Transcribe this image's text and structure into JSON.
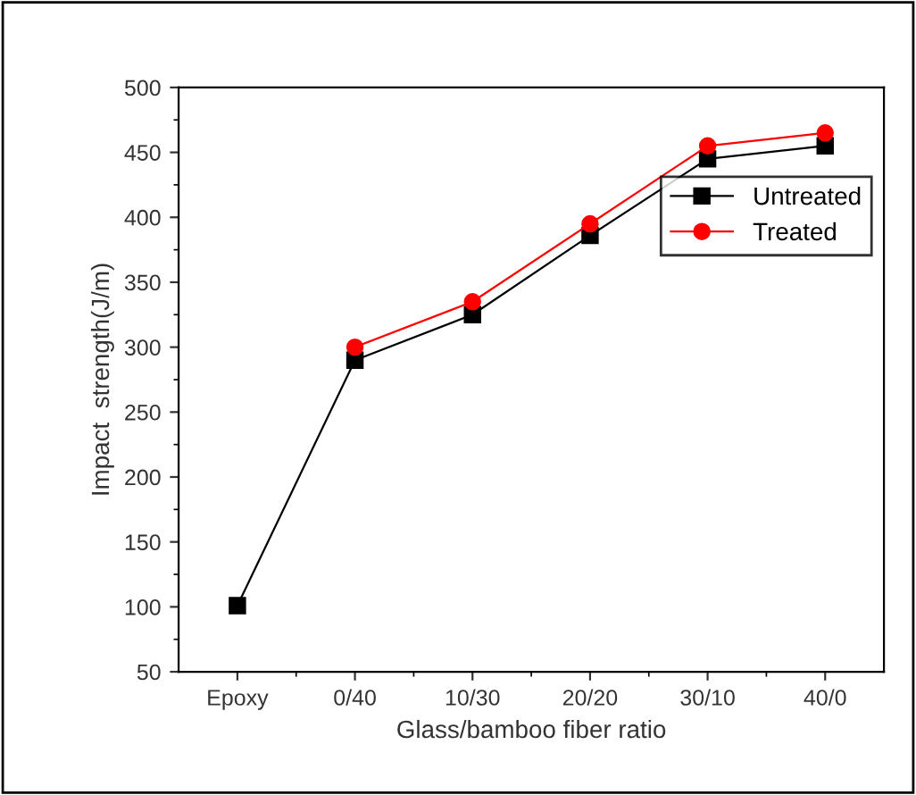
{
  "chart_data": {
    "type": "line",
    "xlabel": "Glass/bamboo fiber ratio",
    "ylabel": "Impact  strength(J/m)",
    "categories": [
      "Epoxy",
      "0/40",
      "10/30",
      "20/20",
      "30/10",
      "40/0"
    ],
    "series": [
      {
        "name": "Untreated",
        "color": "#000000",
        "marker": "square",
        "values": [
          101,
          290,
          325,
          386,
          445,
          455
        ]
      },
      {
        "name": "Treated",
        "color": "#ff0000",
        "marker": "circle",
        "values": [
          null,
          300,
          335,
          395,
          455,
          465
        ]
      }
    ],
    "ylim": [
      50,
      500
    ],
    "yticks": [
      50,
      100,
      150,
      200,
      250,
      300,
      350,
      400,
      450,
      500
    ],
    "grid": false,
    "legend": "right",
    "line_style": "solid"
  }
}
